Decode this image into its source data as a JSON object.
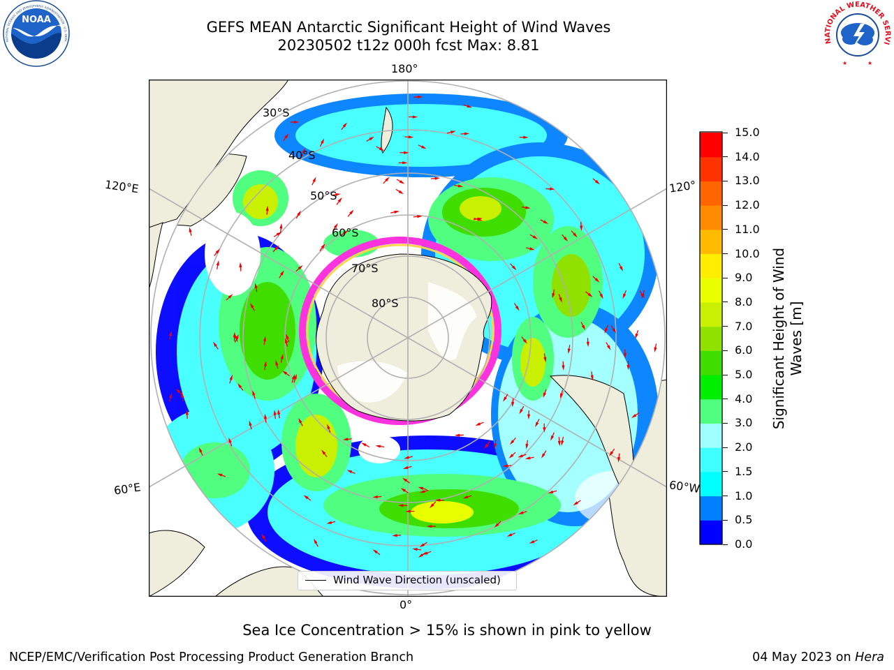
{
  "title": {
    "line1": "GEFS MEAN Antarctic Significant Height of Wind Waves",
    "line2": "20230502 t12z 000h fcst   Max: 8.81"
  },
  "logos": {
    "noaa_text": "NOAA",
    "noaa_ring_text": "NATIONAL OCEANIC AND ATMOSPHERIC ADMINISTRATION · U.S. DEPARTMENT OF COMMERCE",
    "nws_ring_text": "NATIONAL WEATHER SERVICE"
  },
  "map": {
    "projection": "south polar stereographic",
    "longitude_labels": {
      "top": "180°",
      "bottom": "0°",
      "left_upper": "120°E",
      "right_upper": "120°",
      "left_lower": "60°E",
      "right_lower": "60°W"
    },
    "latitude_labels": [
      "30°S",
      "40°S",
      "50°S",
      "60°S",
      "70°S",
      "80°S"
    ],
    "legend": {
      "line_label": "Wind Wave Direction (unscaled)"
    },
    "colors": {
      "land": "#efeddb",
      "grid": "#b0b0b0",
      "ice_pink": "#ff33dd",
      "ice_yellow": "#ffd24d",
      "arrows": "#ee0000"
    }
  },
  "colorbar": {
    "label": "Significant Height of Wind Waves [m]",
    "ticks": [
      "0.0",
      "0.5",
      "1.0",
      "1.5",
      "2.0",
      "3.0",
      "4.0",
      "5.0",
      "6.0",
      "7.0",
      "8.0",
      "9.0",
      "10.0",
      "11.0",
      "12.0",
      "13.0",
      "14.0",
      "15.0"
    ],
    "colors": [
      "#0000ff",
      "#0080ff",
      "#00ffff",
      "#40ffff",
      "#a0ffff",
      "#50ff80",
      "#00ee00",
      "#40dd00",
      "#90e000",
      "#c8f000",
      "#e8ff00",
      "#ffee00",
      "#ffbb00",
      "#ff8c00",
      "#ff6600",
      "#ff3300",
      "#ff0000"
    ]
  },
  "footer": {
    "note": "Sea Ice Concentration > 15% is shown in pink to yellow",
    "left": "NCEP/EMC/Verification Post Processing Product Generation Branch",
    "right_prefix": "04 May 2023 on",
    "right_host": "Hera"
  }
}
